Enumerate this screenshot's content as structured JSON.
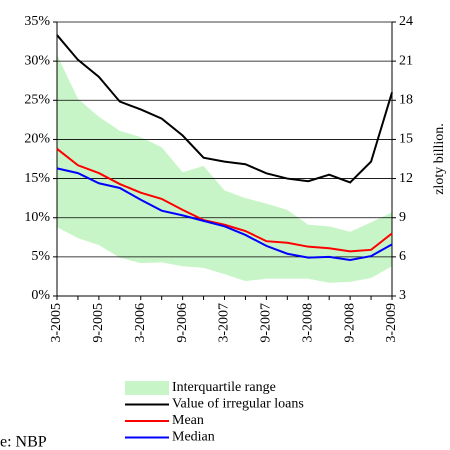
{
  "chart_data": {
    "type": "line",
    "categories": [
      "3-2005",
      null,
      "9-2005",
      null,
      "3-2006",
      null,
      "9-2006",
      null,
      "3-2007",
      null,
      "9-2007",
      null,
      "3-2008",
      null,
      "9-2008",
      null,
      "3-2009"
    ],
    "series": [
      {
        "name": "Interquartile range",
        "type": "band",
        "color": "#c8f5c8",
        "values": [
          30.8,
          25.2,
          22.9,
          21.1,
          20.3,
          19.0,
          15.8,
          16.6,
          13.5,
          12.5,
          11.8,
          11.0,
          9.1,
          8.9,
          8.2,
          9.4,
          10.7
        ],
        "lower": [
          8.8,
          7.4,
          6.5,
          4.9,
          4.2,
          4.3,
          3.8,
          3.6,
          2.8,
          1.9,
          2.2,
          2.2,
          2.2,
          1.7,
          1.8,
          2.3,
          3.8
        ]
      },
      {
        "name": "Value of irregular loans",
        "color": "#000000",
        "axis": "y2",
        "values": [
          23.0,
          21.1,
          19.8,
          17.9,
          17.3,
          16.6,
          15.3,
          13.6,
          13.3,
          13.1,
          12.4,
          12.0,
          11.8,
          12.3,
          11.7,
          13.3,
          18.6
        ]
      },
      {
        "name": "Mean",
        "color": "#ff0000",
        "values": [
          18.8,
          16.7,
          15.7,
          14.3,
          13.2,
          12.4,
          11.0,
          9.7,
          9.1,
          8.3,
          7.0,
          6.8,
          6.3,
          6.1,
          5.7,
          5.9,
          8.0
        ]
      },
      {
        "name": "Median",
        "color": "#0000ff",
        "values": [
          16.3,
          15.7,
          14.4,
          13.8,
          12.3,
          10.9,
          10.3,
          9.6,
          8.9,
          7.8,
          6.4,
          5.4,
          4.9,
          5.0,
          4.6,
          5.1,
          6.6
        ]
      }
    ],
    "ylim": [
      0,
      35
    ],
    "yticks": [
      {
        "value": 0,
        "label": "0%"
      },
      {
        "value": 5,
        "label": "5%"
      },
      {
        "value": 10,
        "label": "10%"
      },
      {
        "value": 15,
        "label": "15%"
      },
      {
        "value": 20,
        "label": "20%"
      },
      {
        "value": 25,
        "label": "25%"
      },
      {
        "value": 30,
        "label": "30%"
      },
      {
        "value": 35,
        "label": "35%"
      }
    ],
    "y2lim": [
      3,
      24
    ],
    "y2ticks": [
      3,
      6,
      9,
      12,
      15,
      18,
      21,
      24
    ],
    "y2label": "zloty billion.",
    "grid": true,
    "source": "e: NBP"
  }
}
